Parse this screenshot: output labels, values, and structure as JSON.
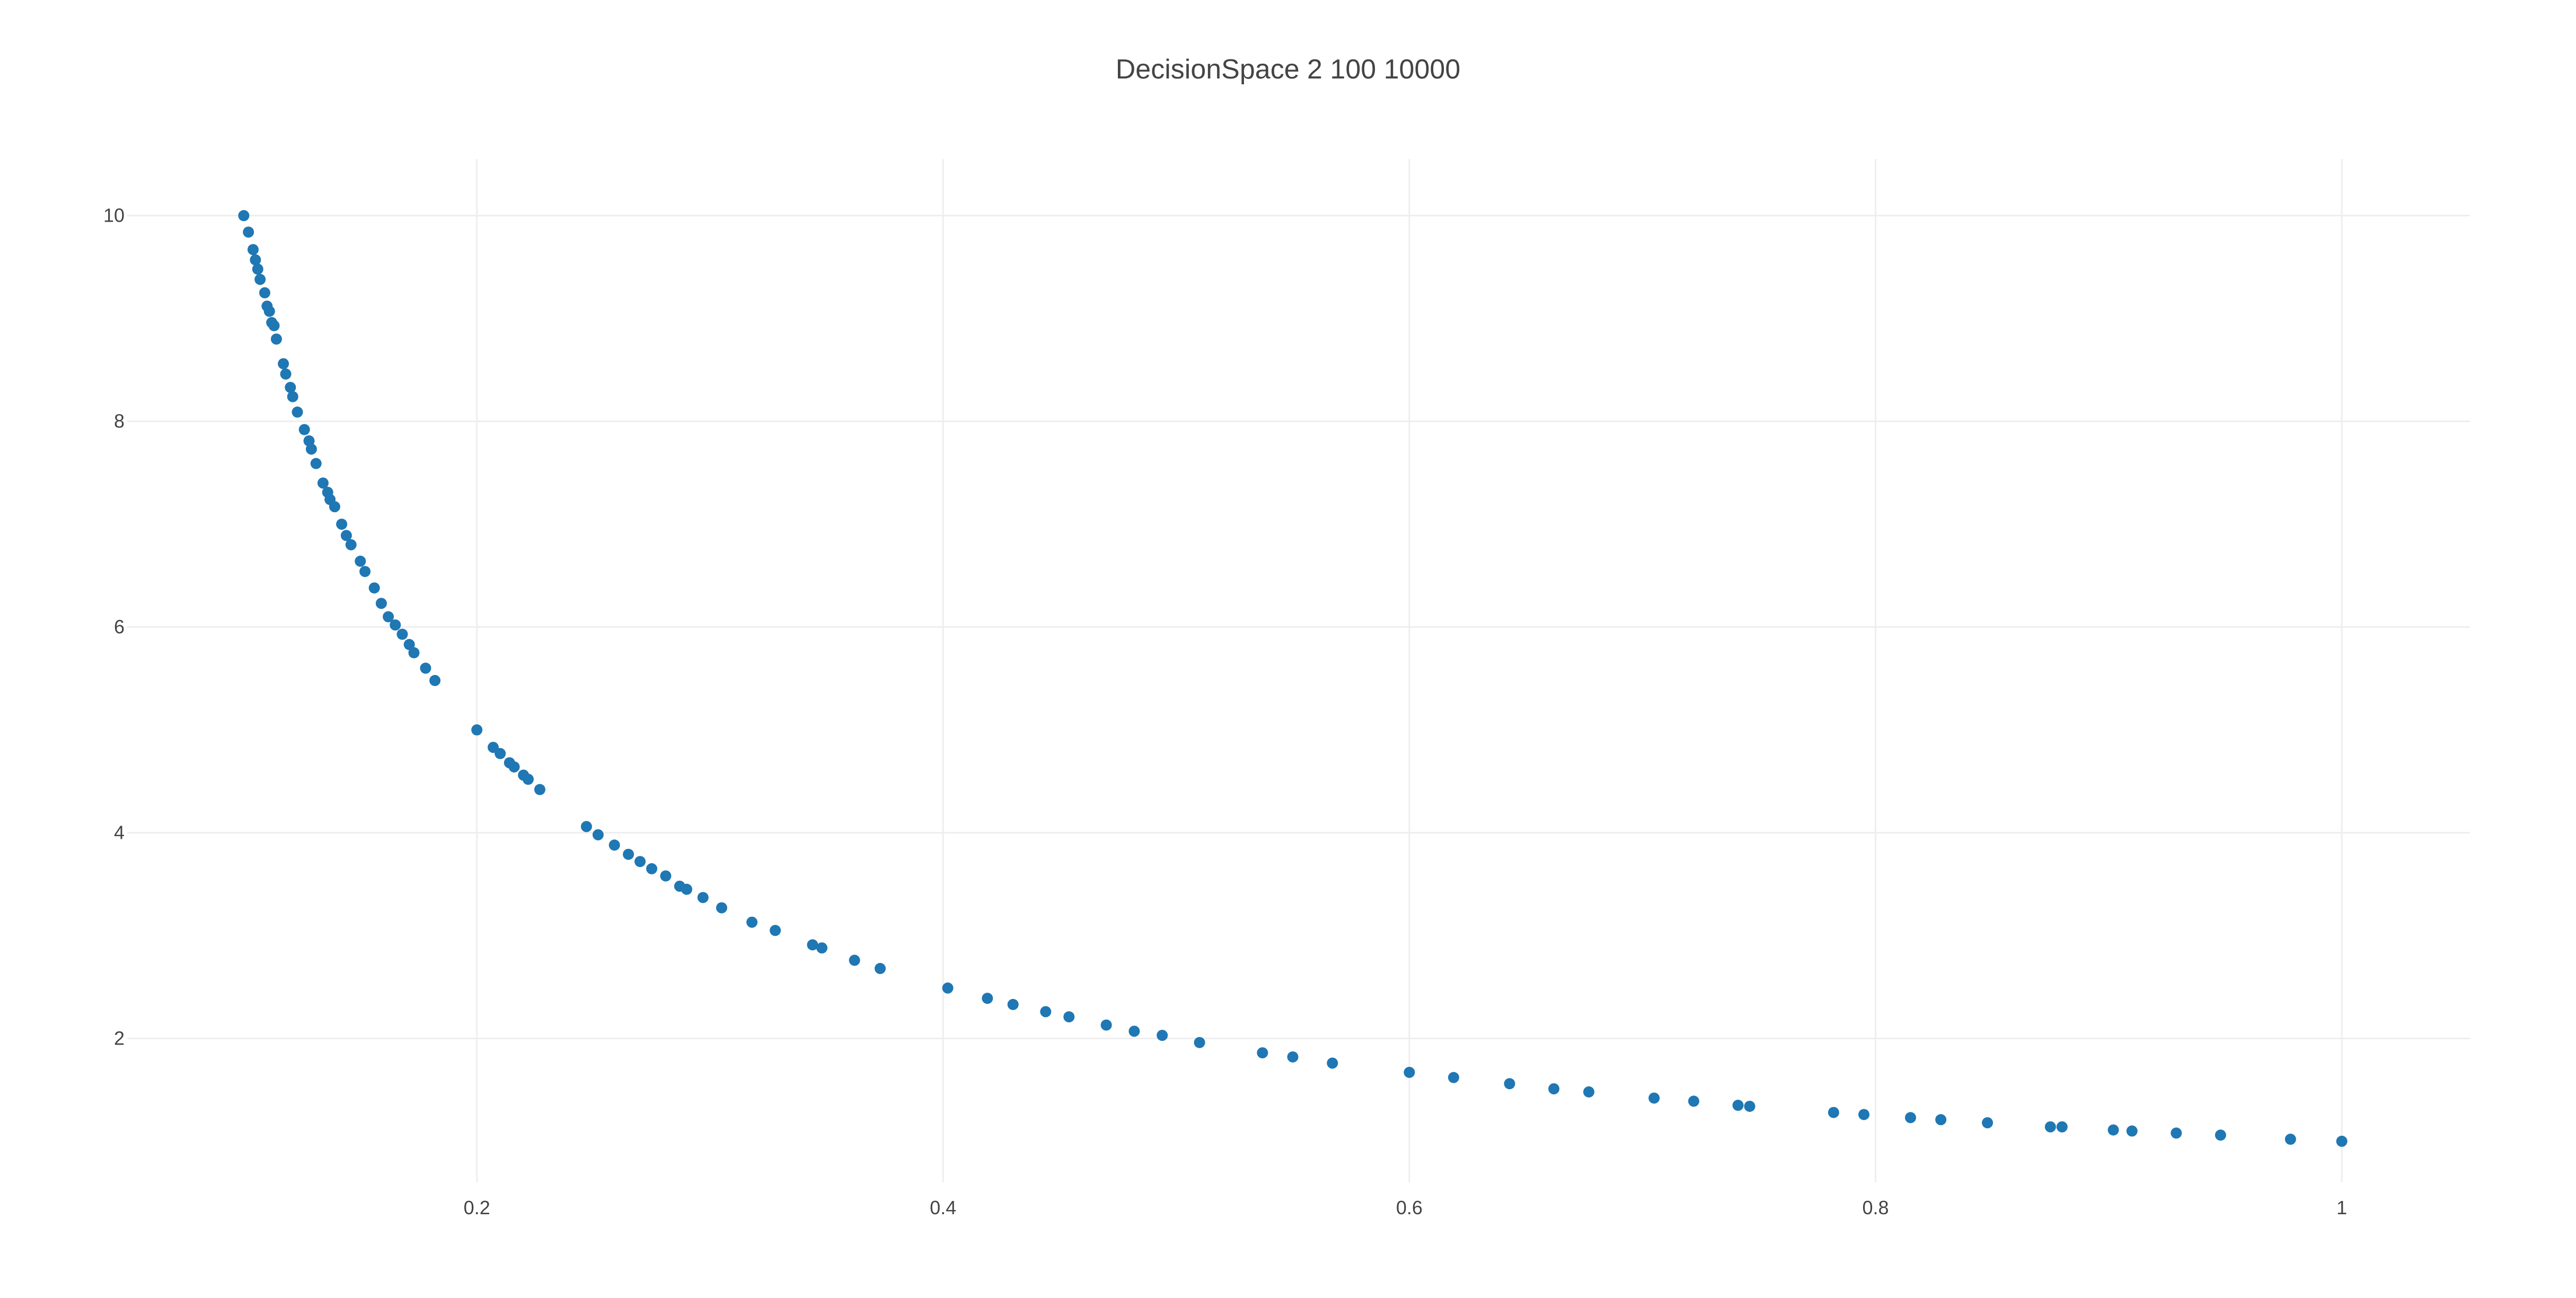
{
  "chart_data": {
    "type": "scatter",
    "title": "DecisionSpace 2 100 10000",
    "xlabel": "",
    "ylabel": "",
    "xlim": [
      0.05,
      1.055
    ],
    "ylim": [
      0.6,
      10.55
    ],
    "x_ticks": [
      0.2,
      0.4,
      0.6,
      0.8,
      1
    ],
    "x_tick_labels": [
      "0.2",
      "0.4",
      "0.6",
      "0.8",
      "1"
    ],
    "y_ticks": [
      2,
      4,
      6,
      8,
      10
    ],
    "y_tick_labels": [
      "2",
      "4",
      "6",
      "8",
      "10"
    ],
    "grid": true,
    "marker_color": "#1f77b4",
    "points": [
      [
        0.1,
        10.0
      ],
      [
        0.102,
        9.84
      ],
      [
        0.104,
        9.67
      ],
      [
        0.105,
        9.57
      ],
      [
        0.106,
        9.48
      ],
      [
        0.107,
        9.38
      ],
      [
        0.109,
        9.25
      ],
      [
        0.11,
        9.12
      ],
      [
        0.111,
        9.07
      ],
      [
        0.112,
        8.96
      ],
      [
        0.113,
        8.93
      ],
      [
        0.114,
        8.8
      ],
      [
        0.117,
        8.56
      ],
      [
        0.118,
        8.46
      ],
      [
        0.12,
        8.33
      ],
      [
        0.121,
        8.24
      ],
      [
        0.123,
        8.09
      ],
      [
        0.126,
        7.92
      ],
      [
        0.128,
        7.81
      ],
      [
        0.129,
        7.73
      ],
      [
        0.131,
        7.59
      ],
      [
        0.134,
        7.4
      ],
      [
        0.136,
        7.31
      ],
      [
        0.137,
        7.24
      ],
      [
        0.139,
        7.17
      ],
      [
        0.142,
        7.0
      ],
      [
        0.144,
        6.89
      ],
      [
        0.146,
        6.8
      ],
      [
        0.15,
        6.64
      ],
      [
        0.152,
        6.54
      ],
      [
        0.156,
        6.38
      ],
      [
        0.159,
        6.23
      ],
      [
        0.162,
        6.1
      ],
      [
        0.165,
        6.02
      ],
      [
        0.168,
        5.93
      ],
      [
        0.171,
        5.83
      ],
      [
        0.173,
        5.75
      ],
      [
        0.178,
        5.6
      ],
      [
        0.182,
        5.48
      ],
      [
        0.2,
        5.0
      ],
      [
        0.207,
        4.83
      ],
      [
        0.21,
        4.77
      ],
      [
        0.214,
        4.68
      ],
      [
        0.216,
        4.64
      ],
      [
        0.22,
        4.56
      ],
      [
        0.222,
        4.52
      ],
      [
        0.227,
        4.42
      ],
      [
        0.247,
        4.06
      ],
      [
        0.252,
        3.98
      ],
      [
        0.259,
        3.88
      ],
      [
        0.265,
        3.79
      ],
      [
        0.27,
        3.72
      ],
      [
        0.275,
        3.65
      ],
      [
        0.281,
        3.58
      ],
      [
        0.287,
        3.48
      ],
      [
        0.29,
        3.45
      ],
      [
        0.297,
        3.37
      ],
      [
        0.305,
        3.27
      ],
      [
        0.318,
        3.13
      ],
      [
        0.328,
        3.05
      ],
      [
        0.344,
        2.91
      ],
      [
        0.348,
        2.88
      ],
      [
        0.362,
        2.76
      ],
      [
        0.373,
        2.68
      ],
      [
        0.402,
        2.49
      ],
      [
        0.419,
        2.39
      ],
      [
        0.43,
        2.33
      ],
      [
        0.444,
        2.26
      ],
      [
        0.454,
        2.21
      ],
      [
        0.47,
        2.13
      ],
      [
        0.482,
        2.07
      ],
      [
        0.494,
        2.03
      ],
      [
        0.51,
        1.96
      ],
      [
        0.537,
        1.86
      ],
      [
        0.55,
        1.82
      ],
      [
        0.567,
        1.76
      ],
      [
        0.6,
        1.67
      ],
      [
        0.619,
        1.62
      ],
      [
        0.643,
        1.56
      ],
      [
        0.662,
        1.51
      ],
      [
        0.677,
        1.48
      ],
      [
        0.705,
        1.42
      ],
      [
        0.722,
        1.39
      ],
      [
        0.741,
        1.35
      ],
      [
        0.746,
        1.34
      ],
      [
        0.782,
        1.28
      ],
      [
        0.795,
        1.26
      ],
      [
        0.815,
        1.23
      ],
      [
        0.828,
        1.21
      ],
      [
        0.848,
        1.18
      ],
      [
        0.875,
        1.14
      ],
      [
        0.88,
        1.14
      ],
      [
        0.902,
        1.11
      ],
      [
        0.91,
        1.1
      ],
      [
        0.929,
        1.08
      ],
      [
        0.948,
        1.06
      ],
      [
        0.978,
        1.02
      ],
      [
        1.0,
        1.0
      ]
    ]
  }
}
